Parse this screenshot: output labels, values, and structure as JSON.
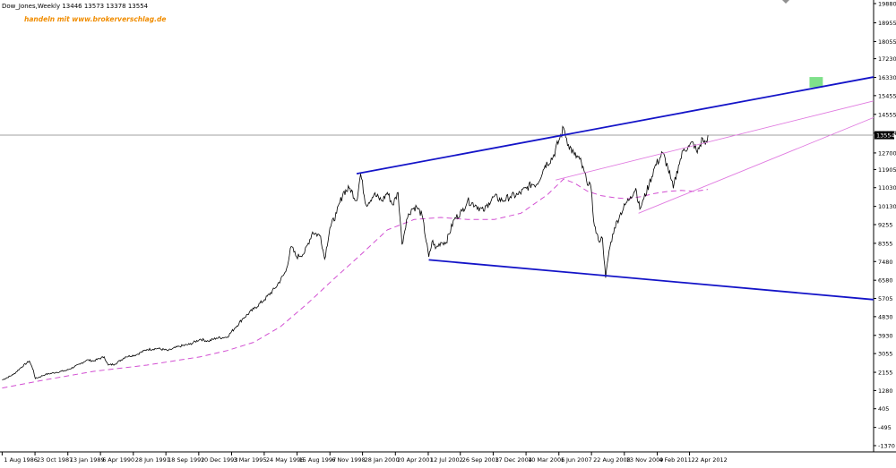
{
  "header": {
    "symbol_line": "Dow_Jones,Weekly  13446 13573 13378 13554",
    "watermark": "handeln mit www.brokerverschlag.de"
  },
  "colors": {
    "background": "#ffffff",
    "price": "#000000",
    "trendline_blue": "#1414c8",
    "channel_magenta": "#e07ae0",
    "moving_average": "#d24fd2",
    "current_price_line": "#a0a0a0",
    "target_box": "#7fe08a",
    "watermark": "#f08c00"
  },
  "chart_data": {
    "type": "line",
    "title": "Dow_Jones,Weekly",
    "ohlc_last": {
      "open": 13446,
      "high": 13573,
      "low": 13378,
      "close": 13554
    },
    "current_price_label": "13554",
    "y_ticks": [
      "19880",
      "18955",
      "18055",
      "17230",
      "16330",
      "15455",
      "14555",
      "13654",
      "12700",
      "11905",
      "11030",
      "10130",
      "9255",
      "8355",
      "7480",
      "6580",
      "5705",
      "4830",
      "3930",
      "3055",
      "2155",
      "1280",
      "405",
      "-495",
      "-1370"
    ],
    "ylim": [
      -1370,
      19880
    ],
    "x_ticks": [
      {
        "label": "1 Aug 1986",
        "t": 1986.58
      },
      {
        "label": "23 Oct 1987",
        "t": 1987.81
      },
      {
        "label": "13 Jan 1989",
        "t": 1989.04
      },
      {
        "label": "6 Apr 1990",
        "t": 1990.26
      },
      {
        "label": "28 Jun 1991",
        "t": 1991.49
      },
      {
        "label": "18 Sep 1992",
        "t": 1992.71
      },
      {
        "label": "10 Dec 1993",
        "t": 1993.94
      },
      {
        "label": "3 Mar 1995",
        "t": 1995.17
      },
      {
        "label": "24 May 1996",
        "t": 1996.39
      },
      {
        "label": "15 Aug 1997",
        "t": 1997.62
      },
      {
        "label": "6 Nov 1998",
        "t": 1998.85
      },
      {
        "label": "28 Jan 2000",
        "t": 2000.07
      },
      {
        "label": "20 Apr 2001",
        "t": 2001.3
      },
      {
        "label": "12 Jul 2002",
        "t": 2002.53
      },
      {
        "label": "26 Sep 2003",
        "t": 2003.73
      },
      {
        "label": "17 Dec 2004",
        "t": 2004.96
      },
      {
        "label": "10 Mar 2006",
        "t": 2006.19
      },
      {
        "label": "1 Jun 2007",
        "t": 2007.42
      },
      {
        "label": "22 Aug 2008",
        "t": 2008.64
      },
      {
        "label": "13 Nov 2009",
        "t": 2009.87
      },
      {
        "label": "4 Feb 2011",
        "t": 2011.1
      },
      {
        "label": "22 Apr 2012",
        "t": 2012.31
      }
    ],
    "xlim": [
      1986.5,
      2019.2
    ],
    "series": [
      {
        "x": [
          1986.58,
          1987.0,
          1987.3,
          1987.6,
          1987.75,
          1987.82,
          1988.2,
          1988.6,
          1989.0,
          1989.5,
          1989.75,
          1990.0,
          1990.4,
          1990.55,
          1990.8,
          1991.2,
          1991.6,
          1992.0,
          1992.4,
          1992.8,
          1993.2,
          1993.6,
          1994.0,
          1994.3,
          1994.6,
          1995.0,
          1995.3,
          1995.6,
          1996.0,
          1996.4,
          1996.8,
          1997.2,
          1997.4,
          1997.6,
          1997.9,
          1998.2,
          1998.5,
          1998.65,
          1998.85,
          1999.1,
          1999.35,
          1999.6,
          1999.85,
          2000.0,
          2000.2,
          2000.5,
          2000.8,
          2001.0,
          2001.2,
          2001.4,
          2001.55,
          2001.72,
          2001.9,
          2002.1,
          2002.3,
          2002.55,
          2002.7,
          2002.8,
          2003.0,
          2003.2,
          2003.5,
          2003.8,
          2004.0,
          2004.3,
          2004.6,
          2004.8,
          2005.0,
          2005.3,
          2005.6,
          2005.9,
          2006.2,
          2006.4,
          2006.6,
          2006.9,
          2007.2,
          2007.45,
          2007.6,
          2007.78,
          2008.0,
          2008.2,
          2008.45,
          2008.6,
          2008.75,
          2008.9,
          2009.05,
          2009.17,
          2009.3,
          2009.5,
          2009.7,
          2009.9,
          2010.1,
          2010.3,
          2010.45,
          2010.6,
          2010.8,
          2011.0,
          2011.3,
          2011.5,
          2011.6,
          2011.7,
          2011.9,
          2012.1,
          2012.3,
          2012.45,
          2012.6,
          2012.8,
          2012.9,
          2013.0
        ],
        "values": [
          1780,
          2050,
          2400,
          2700,
          2250,
          1850,
          2050,
          2150,
          2250,
          2550,
          2750,
          2700,
          2900,
          2500,
          2550,
          2900,
          3000,
          3250,
          3300,
          3200,
          3400,
          3500,
          3750,
          3650,
          3800,
          3850,
          4300,
          4750,
          5200,
          5650,
          6200,
          7000,
          8200,
          7700,
          7900,
          8900,
          8700,
          7600,
          9100,
          9800,
          10800,
          11000,
          10400,
          11700,
          10200,
          10700,
          10400,
          10800,
          10200,
          10800,
          8300,
          9500,
          10000,
          10100,
          9700,
          7700,
          8500,
          8100,
          8400,
          8400,
          9500,
          9900,
          10400,
          10200,
          9900,
          10300,
          10600,
          10400,
          10600,
          10700,
          11000,
          11200,
          11200,
          12100,
          12500,
          13400,
          13900,
          13100,
          12600,
          12400,
          11400,
          11200,
          9200,
          8500,
          8600,
          6700,
          8000,
          9100,
          9700,
          10200,
          10600,
          11000,
          10000,
          10500,
          11200,
          12000,
          12700,
          12000,
          11500,
          11000,
          12100,
          12900,
          13000,
          13200,
          12700,
          13400,
          13100,
          13550
        ]
      },
      {
        "x": [
          1986.58,
          1988.0,
          1990.0,
          1992.0,
          1994.0,
          1995.0,
          1996.0,
          1997.0,
          1998.0,
          1999.0,
          2000.0,
          2001.0,
          2002.0,
          2003.0,
          2004.0,
          2005.0,
          2006.0,
          2007.0,
          2007.6,
          2008.0,
          2008.5,
          2009.0,
          2009.5,
          2010.0,
          2010.5,
          2011.0,
          2011.5,
          2012.0,
          2012.5,
          2013.0
        ],
        "values": [
          1400,
          1750,
          2200,
          2500,
          2900,
          3200,
          3600,
          4350,
          5450,
          6650,
          7800,
          9000,
          9500,
          9600,
          9500,
          9500,
          9800,
          10700,
          11450,
          11250,
          10850,
          10650,
          10550,
          10500,
          10600,
          10750,
          10850,
          10900,
          10850,
          10950
        ]
      }
    ],
    "trendlines": [
      {
        "from": [
          1999.85,
          11700
        ],
        "to": [
          2019.2,
          16350
        ]
      },
      {
        "from": [
          2002.55,
          7560
        ],
        "to": [
          2019.2,
          5650
        ]
      },
      {
        "from": [
          2010.4,
          9800
        ],
        "to": [
          2019.2,
          14400
        ]
      },
      {
        "from": [
          2007.3,
          11400
        ],
        "to": [
          2019.2,
          15200
        ]
      }
    ],
    "current_price": 13554,
    "target_zone": {
      "x": [
        2016.8,
        2017.3
      ],
      "y": [
        15850,
        16350
      ]
    },
    "grid": false
  }
}
